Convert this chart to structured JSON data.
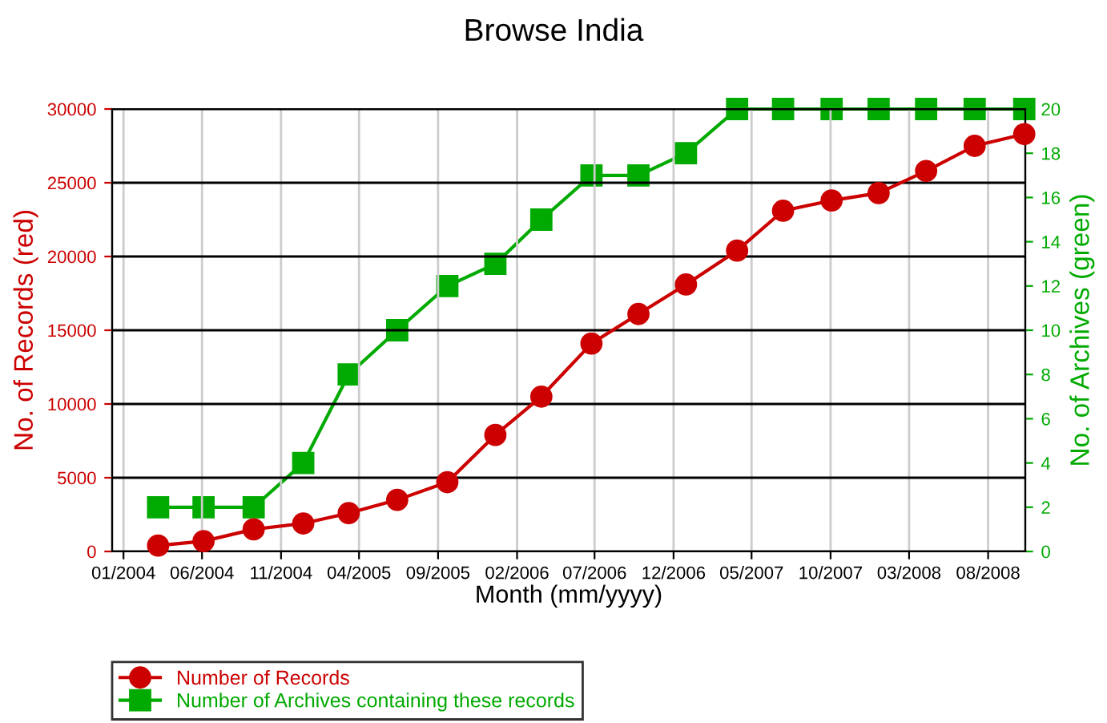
{
  "chart_data": {
    "type": "line",
    "title": "Browse India",
    "xlabel": "Month (mm/yyyy)",
    "ylabel": "No. of Records (red)",
    "y2label": "No. of Archives (green)",
    "x": [
      "2004-03-08",
      "2004-06-04",
      "2004-09-09",
      "2004-12-14",
      "2005-03-12",
      "2005-06-14",
      "2005-09-19",
      "2005-12-21",
      "2006-03-20",
      "2006-06-25",
      "2006-09-24",
      "2006-12-25",
      "2007-04-03",
      "2007-07-01",
      "2007-10-03",
      "2008-01-02",
      "2008-04-03",
      "2008-07-06",
      "2008-10-10"
    ],
    "series": [
      {
        "name": "Number of Records",
        "color": "#cc0000",
        "marker": "circle",
        "values": [
          400,
          700,
          1500,
          1900,
          2600,
          3500,
          4700,
          7900,
          10500,
          14100,
          16100,
          18100,
          20400,
          23100,
          23800,
          24300,
          25800,
          27500,
          28300
        ]
      },
      {
        "name": "Number of Archives containing these records",
        "color": "#00aa00",
        "marker": "square",
        "axis": "y2",
        "values": [
          2,
          2,
          2,
          4,
          8,
          10,
          12,
          13,
          15,
          17,
          17,
          18,
          20,
          20,
          20,
          20,
          20,
          20,
          20
        ]
      }
    ],
    "xlim": [
      "2003-12-10",
      "2008-10-12"
    ],
    "xticks": [
      {
        "value": "2004-01-01",
        "label": "01/2004"
      },
      {
        "value": "2004-06-01",
        "label": "06/2004"
      },
      {
        "value": "2004-11-01",
        "label": "11/2004"
      },
      {
        "value": "2005-04-01",
        "label": "04/2005"
      },
      {
        "value": "2005-09-01",
        "label": "09/2005"
      },
      {
        "value": "2006-02-01",
        "label": "02/2006"
      },
      {
        "value": "2006-07-01",
        "label": "07/2006"
      },
      {
        "value": "2006-12-01",
        "label": "12/2006"
      },
      {
        "value": "2007-05-01",
        "label": "05/2007"
      },
      {
        "value": "2007-10-01",
        "label": "10/2007"
      },
      {
        "value": "2008-03-01",
        "label": "03/2008"
      },
      {
        "value": "2008-08-01",
        "label": "08/2008"
      }
    ],
    "ylim": [
      0,
      30000
    ],
    "yticks": [
      0,
      5000,
      10000,
      15000,
      20000,
      25000,
      30000
    ],
    "y2lim": [
      0,
      20
    ],
    "y2ticks": [
      0,
      2,
      4,
      6,
      8,
      10,
      12,
      14,
      16,
      18,
      20
    ],
    "grid": true,
    "legend": "bottom",
    "line_style": "solid"
  }
}
